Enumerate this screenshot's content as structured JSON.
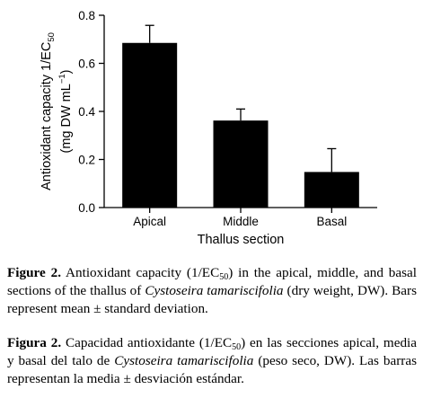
{
  "chart_data": {
    "type": "bar",
    "categories": [
      "Apical",
      "Middle",
      "Basal"
    ],
    "values": [
      0.685,
      0.362,
      0.148
    ],
    "errors": [
      0.073,
      0.048,
      0.097
    ],
    "xlabel": "Thallus section",
    "ylabel_line1": "Antioxidant capacity 1/EC",
    "ylabel_line1_sub": "50",
    "ylabel_line2": "(mg DW mL",
    "ylabel_line2_sup": "−1",
    "ylabel_line2_end": ")",
    "ylim": [
      0,
      0.8
    ],
    "yticks": [
      "0.0",
      "0.2",
      "0.4",
      "0.6",
      "0.8"
    ],
    "grid": false,
    "bar_color": "#000000"
  },
  "caption_en": {
    "label": "Figure 2.",
    "t1": " Antioxidant capacity (1/EC",
    "sub": "50",
    "t2": ") in the apical, middle, and basal sections of the thallus of ",
    "species": "Cystoseira tamariscifolia",
    "t3": " (dry weight, DW). Bars represent mean ± standard deviation."
  },
  "caption_es": {
    "label": "Figura 2.",
    "t1": " Capacidad antioxidante (1/EC",
    "sub": "50",
    "t2": ") en las secciones apical, media y basal del talo de ",
    "species": "Cystoseira tamariscifolia",
    "t3": " (peso seco, DW). Las barras representan la media ± desviación estándar."
  }
}
